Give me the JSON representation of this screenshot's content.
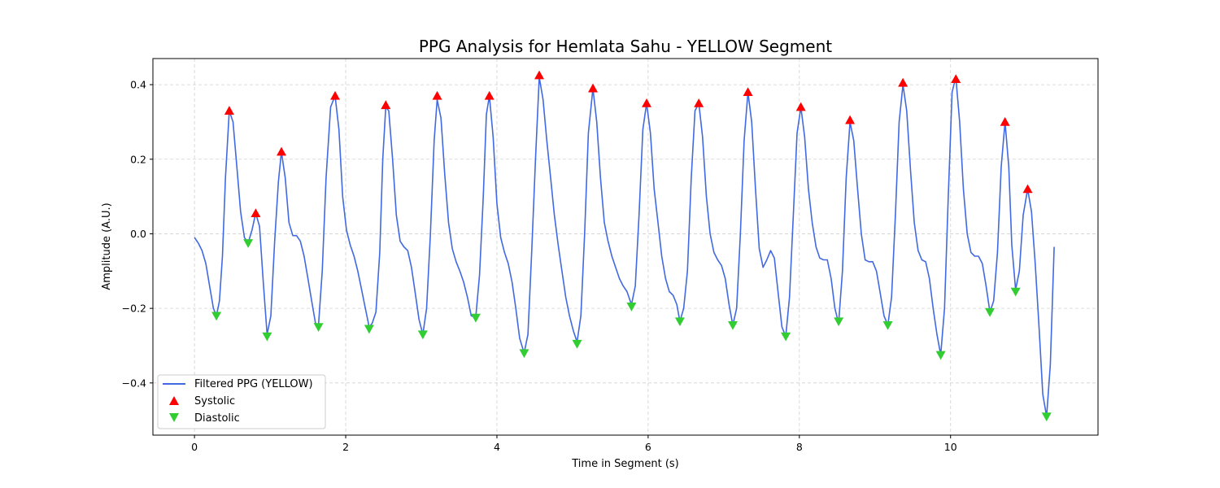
{
  "chart_data": {
    "type": "line",
    "title": "PPG Analysis for Hemlata Sahu - YELLOW Segment",
    "xlabel": "Time in Segment (s)",
    "ylabel": "Amplitude (A.U.)",
    "xlim": [
      -0.55,
      11.95
    ],
    "ylim": [
      -0.54,
      0.47
    ],
    "xticks": [
      0,
      2,
      4,
      6,
      8,
      10
    ],
    "yticks": [
      -0.4,
      -0.2,
      0.0,
      0.2,
      0.4
    ],
    "ytick_labels": [
      "−0.4",
      "−0.2",
      "0.0",
      "0.2",
      "0.4"
    ],
    "grid": true,
    "legend_position": "lower-left",
    "colors": {
      "line": "#4169e1",
      "systolic": "#ff0000",
      "diastolic": "#32cd32"
    },
    "series": [
      {
        "name": "Filtered PPG (YELLOW)",
        "kind": "line",
        "points": [
          [
            0.0,
            -0.01
          ],
          [
            0.05,
            -0.025
          ],
          [
            0.1,
            -0.045
          ],
          [
            0.15,
            -0.08
          ],
          [
            0.2,
            -0.14
          ],
          [
            0.25,
            -0.2
          ],
          [
            0.29,
            -0.22
          ],
          [
            0.33,
            -0.18
          ],
          [
            0.37,
            -0.06
          ],
          [
            0.41,
            0.15
          ],
          [
            0.46,
            0.33
          ],
          [
            0.51,
            0.3
          ],
          [
            0.56,
            0.18
          ],
          [
            0.61,
            0.06
          ],
          [
            0.66,
            -0.01
          ],
          [
            0.71,
            -0.025
          ],
          [
            0.76,
            0.01
          ],
          [
            0.81,
            0.055
          ],
          [
            0.86,
            0.02
          ],
          [
            0.91,
            -0.13
          ],
          [
            0.96,
            -0.27
          ],
          [
            1.01,
            -0.22
          ],
          [
            1.06,
            -0.02
          ],
          [
            1.11,
            0.14
          ],
          [
            1.15,
            0.22
          ],
          [
            1.2,
            0.15
          ],
          [
            1.25,
            0.03
          ],
          [
            1.3,
            -0.005
          ],
          [
            1.35,
            -0.005
          ],
          [
            1.4,
            -0.02
          ],
          [
            1.45,
            -0.06
          ],
          [
            1.5,
            -0.12
          ],
          [
            1.55,
            -0.18
          ],
          [
            1.6,
            -0.24
          ],
          [
            1.64,
            -0.245
          ],
          [
            1.69,
            -0.1
          ],
          [
            1.74,
            0.15
          ],
          [
            1.8,
            0.34
          ],
          [
            1.86,
            0.37
          ],
          [
            1.91,
            0.28
          ],
          [
            1.96,
            0.1
          ],
          [
            2.01,
            0.01
          ],
          [
            2.06,
            -0.03
          ],
          [
            2.11,
            -0.06
          ],
          [
            2.16,
            -0.1
          ],
          [
            2.21,
            -0.15
          ],
          [
            2.26,
            -0.2
          ],
          [
            2.31,
            -0.25
          ],
          [
            2.35,
            -0.24
          ],
          [
            2.4,
            -0.21
          ],
          [
            2.45,
            -0.05
          ],
          [
            2.49,
            0.2
          ],
          [
            2.53,
            0.34
          ],
          [
            2.57,
            0.33
          ],
          [
            2.62,
            0.2
          ],
          [
            2.67,
            0.05
          ],
          [
            2.72,
            -0.02
          ],
          [
            2.77,
            -0.035
          ],
          [
            2.82,
            -0.045
          ],
          [
            2.87,
            -0.09
          ],
          [
            2.92,
            -0.16
          ],
          [
            2.97,
            -0.23
          ],
          [
            3.02,
            -0.27
          ],
          [
            3.07,
            -0.2
          ],
          [
            3.12,
            0.0
          ],
          [
            3.17,
            0.25
          ],
          [
            3.21,
            0.36
          ],
          [
            3.26,
            0.31
          ],
          [
            3.31,
            0.16
          ],
          [
            3.36,
            0.03
          ],
          [
            3.41,
            -0.04
          ],
          [
            3.46,
            -0.075
          ],
          [
            3.51,
            -0.1
          ],
          [
            3.56,
            -0.13
          ],
          [
            3.61,
            -0.17
          ],
          [
            3.66,
            -0.22
          ],
          [
            3.72,
            -0.225
          ],
          [
            3.77,
            -0.11
          ],
          [
            3.82,
            0.1
          ],
          [
            3.86,
            0.32
          ],
          [
            3.9,
            0.37
          ],
          [
            3.95,
            0.26
          ],
          [
            4.0,
            0.08
          ],
          [
            4.05,
            -0.01
          ],
          [
            4.1,
            -0.05
          ],
          [
            4.15,
            -0.08
          ],
          [
            4.2,
            -0.13
          ],
          [
            4.25,
            -0.2
          ],
          [
            4.3,
            -0.28
          ],
          [
            4.36,
            -0.32
          ],
          [
            4.41,
            -0.27
          ],
          [
            4.46,
            -0.05
          ],
          [
            4.51,
            0.2
          ],
          [
            4.56,
            0.42
          ],
          [
            4.61,
            0.36
          ],
          [
            4.66,
            0.25
          ],
          [
            4.71,
            0.15
          ],
          [
            4.76,
            0.05
          ],
          [
            4.81,
            -0.03
          ],
          [
            4.86,
            -0.1
          ],
          [
            4.91,
            -0.17
          ],
          [
            4.96,
            -0.22
          ],
          [
            5.01,
            -0.26
          ],
          [
            5.06,
            -0.29
          ],
          [
            5.11,
            -0.22
          ],
          [
            5.16,
            0.0
          ],
          [
            5.21,
            0.27
          ],
          [
            5.27,
            0.39
          ],
          [
            5.32,
            0.3
          ],
          [
            5.37,
            0.15
          ],
          [
            5.42,
            0.03
          ],
          [
            5.47,
            -0.02
          ],
          [
            5.52,
            -0.06
          ],
          [
            5.57,
            -0.09
          ],
          [
            5.62,
            -0.12
          ],
          [
            5.67,
            -0.14
          ],
          [
            5.72,
            -0.155
          ],
          [
            5.78,
            -0.19
          ],
          [
            5.83,
            -0.14
          ],
          [
            5.88,
            0.05
          ],
          [
            5.93,
            0.28
          ],
          [
            5.98,
            0.35
          ],
          [
            6.03,
            0.27
          ],
          [
            6.08,
            0.12
          ],
          [
            6.13,
            0.03
          ],
          [
            6.18,
            -0.06
          ],
          [
            6.23,
            -0.12
          ],
          [
            6.28,
            -0.155
          ],
          [
            6.33,
            -0.165
          ],
          [
            6.38,
            -0.19
          ],
          [
            6.42,
            -0.235
          ],
          [
            6.47,
            -0.2
          ],
          [
            6.52,
            -0.1
          ],
          [
            6.57,
            0.15
          ],
          [
            6.62,
            0.33
          ],
          [
            6.67,
            0.35
          ],
          [
            6.72,
            0.26
          ],
          [
            6.77,
            0.1
          ],
          [
            6.82,
            0.0
          ],
          [
            6.87,
            -0.05
          ],
          [
            6.92,
            -0.07
          ],
          [
            6.97,
            -0.085
          ],
          [
            7.02,
            -0.12
          ],
          [
            7.07,
            -0.19
          ],
          [
            7.12,
            -0.245
          ],
          [
            7.17,
            -0.2
          ],
          [
            7.22,
            0.0
          ],
          [
            7.27,
            0.25
          ],
          [
            7.32,
            0.38
          ],
          [
            7.37,
            0.3
          ],
          [
            7.42,
            0.12
          ],
          [
            7.47,
            -0.04
          ],
          [
            7.52,
            -0.09
          ],
          [
            7.57,
            -0.07
          ],
          [
            7.62,
            -0.045
          ],
          [
            7.67,
            -0.065
          ],
          [
            7.72,
            -0.16
          ],
          [
            7.77,
            -0.25
          ],
          [
            7.82,
            -0.275
          ],
          [
            7.87,
            -0.17
          ],
          [
            7.92,
            0.05
          ],
          [
            7.97,
            0.27
          ],
          [
            8.02,
            0.34
          ],
          [
            8.07,
            0.26
          ],
          [
            8.12,
            0.12
          ],
          [
            8.17,
            0.03
          ],
          [
            8.22,
            -0.035
          ],
          [
            8.27,
            -0.065
          ],
          [
            8.32,
            -0.07
          ],
          [
            8.37,
            -0.07
          ],
          [
            8.42,
            -0.12
          ],
          [
            8.47,
            -0.2
          ],
          [
            8.52,
            -0.24
          ],
          [
            8.57,
            -0.1
          ],
          [
            8.62,
            0.15
          ],
          [
            8.67,
            0.3
          ],
          [
            8.72,
            0.25
          ],
          [
            8.77,
            0.12
          ],
          [
            8.82,
            0.0
          ],
          [
            8.87,
            -0.07
          ],
          [
            8.92,
            -0.075
          ],
          [
            8.97,
            -0.075
          ],
          [
            9.02,
            -0.1
          ],
          [
            9.07,
            -0.16
          ],
          [
            9.12,
            -0.22
          ],
          [
            9.17,
            -0.245
          ],
          [
            9.22,
            -0.17
          ],
          [
            9.27,
            0.05
          ],
          [
            9.32,
            0.3
          ],
          [
            9.37,
            0.4
          ],
          [
            9.42,
            0.33
          ],
          [
            9.47,
            0.17
          ],
          [
            9.52,
            0.03
          ],
          [
            9.57,
            -0.045
          ],
          [
            9.62,
            -0.07
          ],
          [
            9.67,
            -0.075
          ],
          [
            9.72,
            -0.12
          ],
          [
            9.77,
            -0.2
          ],
          [
            9.82,
            -0.27
          ],
          [
            9.87,
            -0.325
          ],
          [
            9.92,
            -0.2
          ],
          [
            9.97,
            0.1
          ],
          [
            10.02,
            0.38
          ],
          [
            10.07,
            0.42
          ],
          [
            10.12,
            0.3
          ],
          [
            10.17,
            0.12
          ],
          [
            10.22,
            0.0
          ],
          [
            10.27,
            -0.05
          ],
          [
            10.32,
            -0.06
          ],
          [
            10.37,
            -0.06
          ],
          [
            10.42,
            -0.08
          ],
          [
            10.47,
            -0.14
          ],
          [
            10.52,
            -0.21
          ],
          [
            10.57,
            -0.18
          ],
          [
            10.62,
            -0.05
          ],
          [
            10.67,
            0.18
          ],
          [
            10.72,
            0.3
          ],
          [
            10.77,
            0.18
          ],
          [
            10.81,
            -0.03
          ],
          [
            10.86,
            -0.15
          ],
          [
            10.91,
            -0.1
          ],
          [
            10.96,
            0.05
          ],
          [
            11.02,
            0.12
          ],
          [
            11.07,
            0.06
          ],
          [
            11.12,
            -0.08
          ],
          [
            11.17,
            -0.25
          ],
          [
            11.22,
            -0.43
          ],
          [
            11.27,
            -0.49
          ],
          [
            11.32,
            -0.35
          ],
          [
            11.37,
            -0.035
          ]
        ]
      },
      {
        "name": "Systolic",
        "kind": "marker",
        "marker": "triangle-up",
        "points": [
          [
            0.46,
            0.33
          ],
          [
            0.81,
            0.055
          ],
          [
            1.15,
            0.22
          ],
          [
            1.86,
            0.37
          ],
          [
            2.53,
            0.345
          ],
          [
            3.21,
            0.37
          ],
          [
            3.9,
            0.37
          ],
          [
            4.56,
            0.425
          ],
          [
            5.27,
            0.39
          ],
          [
            5.98,
            0.35
          ],
          [
            6.67,
            0.35
          ],
          [
            7.32,
            0.38
          ],
          [
            8.02,
            0.34
          ],
          [
            8.67,
            0.305
          ],
          [
            9.37,
            0.405
          ],
          [
            10.07,
            0.415
          ],
          [
            10.72,
            0.3
          ],
          [
            11.02,
            0.12
          ]
        ]
      },
      {
        "name": "Diastolic",
        "kind": "marker",
        "marker": "triangle-down",
        "points": [
          [
            0.29,
            -0.22
          ],
          [
            0.71,
            -0.025
          ],
          [
            0.96,
            -0.275
          ],
          [
            1.64,
            -0.25
          ],
          [
            2.31,
            -0.255
          ],
          [
            3.02,
            -0.27
          ],
          [
            3.72,
            -0.225
          ],
          [
            4.36,
            -0.32
          ],
          [
            5.06,
            -0.295
          ],
          [
            5.78,
            -0.195
          ],
          [
            6.42,
            -0.235
          ],
          [
            7.12,
            -0.245
          ],
          [
            7.82,
            -0.275
          ],
          [
            8.52,
            -0.235
          ],
          [
            9.17,
            -0.245
          ],
          [
            9.87,
            -0.325
          ],
          [
            10.52,
            -0.21
          ],
          [
            10.86,
            -0.155
          ],
          [
            11.27,
            -0.49
          ]
        ]
      }
    ]
  }
}
